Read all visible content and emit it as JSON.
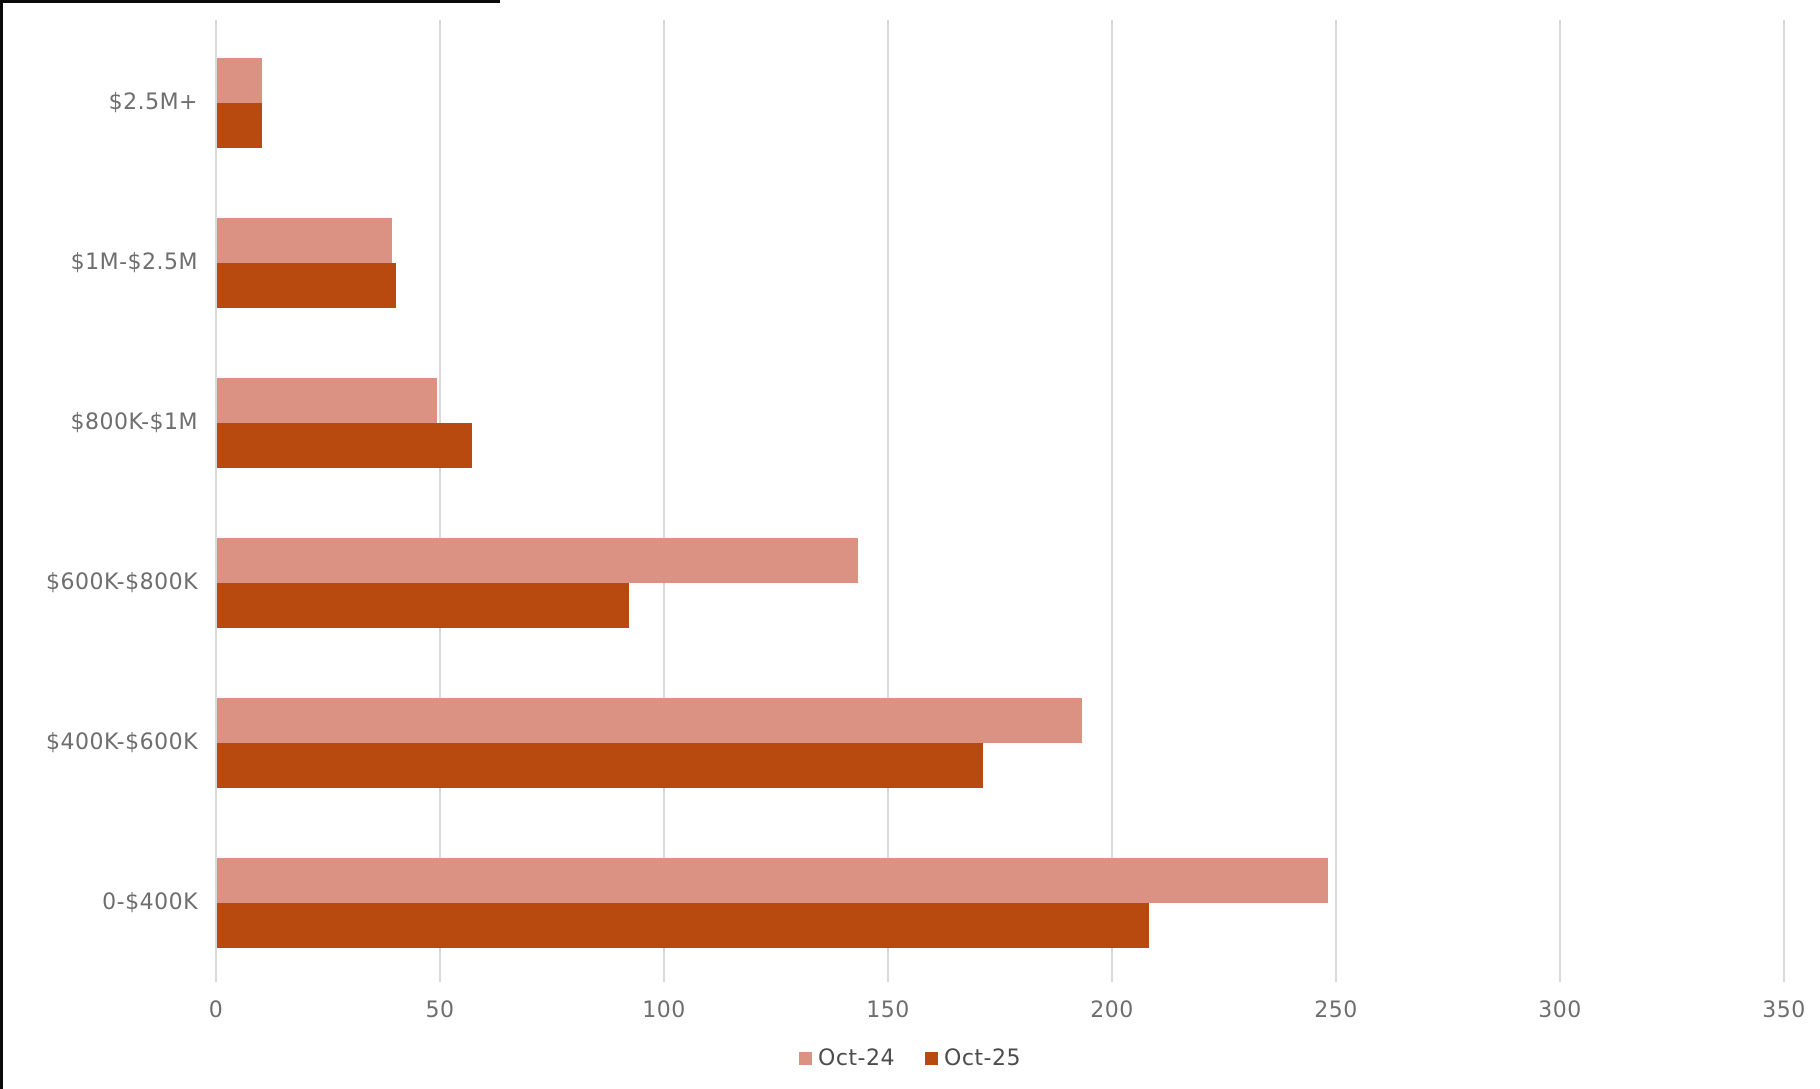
{
  "chart_data": {
    "type": "bar",
    "orientation": "horizontal",
    "title": "",
    "xlabel": "",
    "ylabel": "",
    "categories": [
      "$2.5M+",
      "$1M-$2.5M",
      "$800K-$1M",
      "$600K-$800K",
      "$400K-$600K",
      "0-$400K"
    ],
    "series": [
      {
        "name": "Oct-24",
        "color": "#DC9282",
        "values": [
          10,
          39,
          49,
          143,
          193,
          248
        ]
      },
      {
        "name": "Oct-25",
        "color": "#B84A0F",
        "values": [
          10,
          40,
          57,
          92,
          171,
          208
        ]
      }
    ],
    "xlim": [
      0,
      350
    ],
    "xticks": [
      0,
      50,
      100,
      150,
      200,
      250,
      300,
      350
    ],
    "grid": "vertical",
    "legend_position": "bottom-center",
    "colors": {
      "gridline": "#D9D9D9",
      "axis_label": "#6E6E6E",
      "legend_text": "#4C4C4C",
      "window_edge": "#0a0a0a"
    }
  }
}
